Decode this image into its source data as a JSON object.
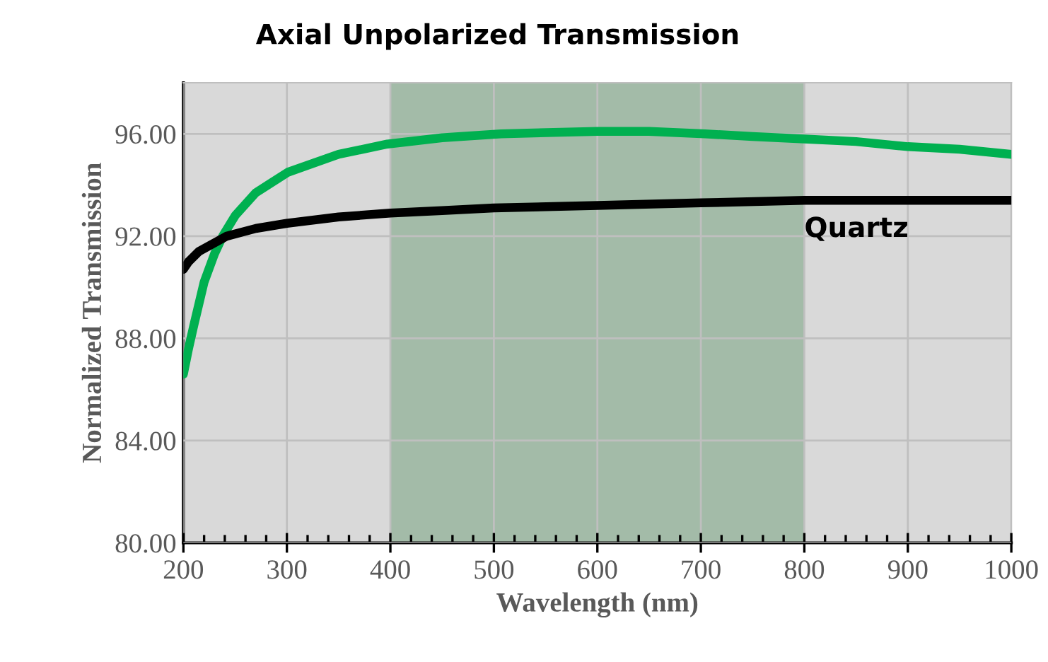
{
  "chart_data": {
    "type": "line",
    "title": "Axial Unpolarized Transmission",
    "xlabel": "Wavelength (nm)",
    "ylabel": "Normalized Transmission",
    "xlim": [
      200,
      1000
    ],
    "xticks": [
      200,
      300,
      400,
      500,
      600,
      700,
      800,
      900,
      1000
    ],
    "ylim": [
      80,
      98
    ],
    "yticks": [
      {
        "value": 80,
        "label": "80.00"
      },
      {
        "value": 84,
        "label": "84.00"
      },
      {
        "value": 88,
        "label": "88.00"
      },
      {
        "value": 92,
        "label": "92.00"
      },
      {
        "value": 96,
        "label": "96.00"
      }
    ],
    "grid": true,
    "legend": false,
    "bands": [
      {
        "axis": "x",
        "from": 400,
        "to": 800,
        "color": "#a3bba8"
      }
    ],
    "series": [
      {
        "color": "#00b050",
        "x": [
          200,
          205,
          210,
          220,
          230,
          238,
          250,
          270,
          301,
          350,
          397,
          450,
          507,
          600,
          650,
          704,
          750,
          800,
          850,
          900,
          950,
          1000
        ],
        "values": [
          86.6,
          87.6,
          88.5,
          90.2,
          91.3,
          92.0,
          92.8,
          93.7,
          94.5,
          95.2,
          95.6,
          95.85,
          96.0,
          96.1,
          96.1,
          96.0,
          95.9,
          95.8,
          95.7,
          95.5,
          95.4,
          95.2
        ]
      },
      {
        "name": "Quartz",
        "color": "#000000",
        "x": [
          200,
          205,
          215,
          242,
          270,
          300,
          350,
          400,
          450,
          500,
          600,
          700,
          800,
          900,
          1000
        ],
        "values": [
          90.7,
          91.0,
          91.4,
          92.0,
          92.3,
          92.5,
          92.75,
          92.9,
          93.0,
          93.1,
          93.2,
          93.3,
          93.4,
          93.4,
          93.4
        ]
      }
    ]
  }
}
